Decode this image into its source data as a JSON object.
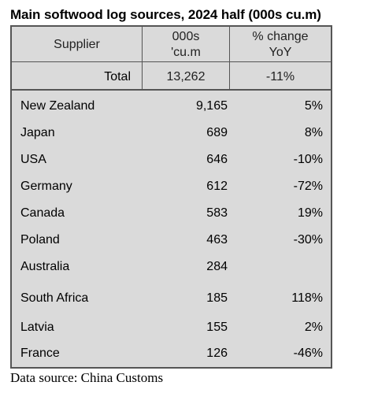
{
  "title": "Main softwood log sources, 2024 half (000s cu.m)",
  "source": "Data source: China Customs",
  "chart_data": {
    "type": "table",
    "columns": [
      {
        "line1": "Supplier",
        "line2": ""
      },
      {
        "line1": "000s",
        "line2": "'cu.m"
      },
      {
        "line1": "% change",
        "line2": "YoY"
      }
    ],
    "total": {
      "label": "Total",
      "volume": "13,262",
      "change": "-11%"
    },
    "rows": [
      {
        "supplier": "New Zealand",
        "volume": "9,165",
        "change": "5%"
      },
      {
        "supplier": "Japan",
        "volume": "689",
        "change": "8%"
      },
      {
        "supplier": "USA",
        "volume": "646",
        "change": "-10%"
      },
      {
        "supplier": "Germany",
        "volume": "612",
        "change": "-72%"
      },
      {
        "supplier": "Canada",
        "volume": "583",
        "change": "19%"
      },
      {
        "supplier": "Poland",
        "volume": "463",
        "change": "-30%"
      },
      {
        "supplier": "Australia",
        "volume": "284",
        "change": ""
      },
      {
        "supplier": "South Africa",
        "volume": "185",
        "change": "118%"
      },
      {
        "supplier": "Latvia",
        "volume": "155",
        "change": "2%"
      },
      {
        "supplier": "France",
        "volume": "126",
        "change": "-46%"
      }
    ]
  }
}
